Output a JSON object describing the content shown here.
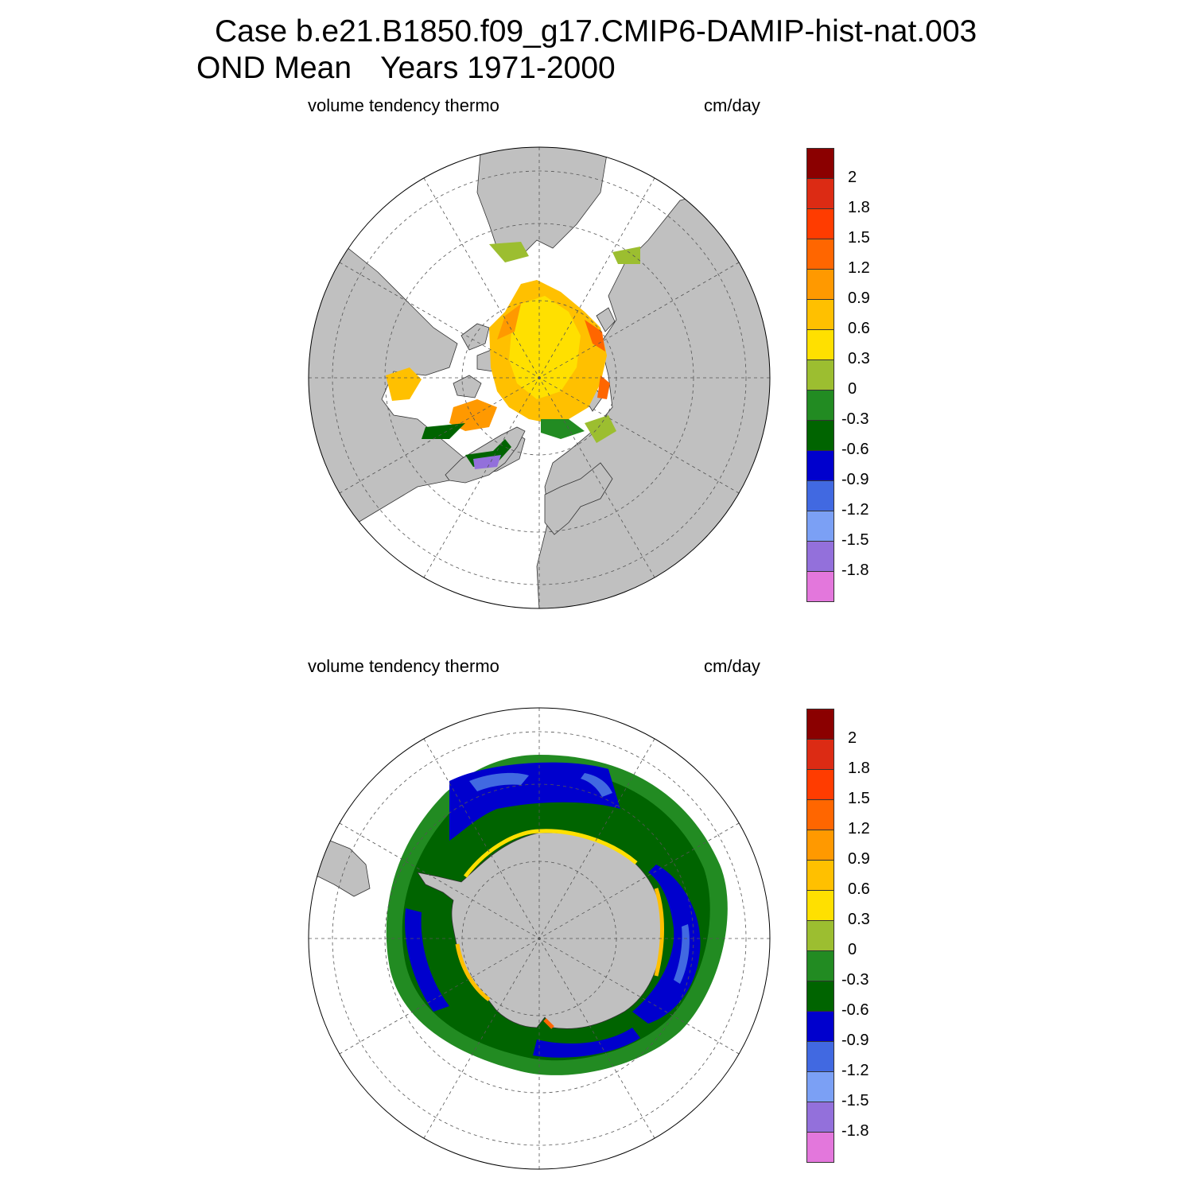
{
  "title_line1": "Case b.e21.B1850.f09_g17.CMIP6-DAMIP-hist-nat.003",
  "title_line2_part1": "OND Mean",
  "title_line2_part2": "Years 1971-2000",
  "panels": [
    {
      "variable_label": "volume tendency thermo",
      "units_label": "cm/day",
      "hemisphere": "north"
    },
    {
      "variable_label": "volume tendency thermo",
      "units_label": "cm/day",
      "hemisphere": "south"
    }
  ],
  "colorbar": {
    "colors": [
      "#8b0000",
      "#dc2b14",
      "#ff3c00",
      "#ff6600",
      "#ff9900",
      "#ffc000",
      "#ffe000",
      "#9cbe30",
      "#228b22",
      "#006400",
      "#0000cd",
      "#4169e1",
      "#7ba0f5",
      "#9370db",
      "#e377dc"
    ],
    "labels": [
      "2",
      "1.8",
      "1.5",
      "1.2",
      "0.9",
      "0.6",
      "0.3",
      "0",
      "-0.3",
      "-0.6",
      "-0.9",
      "-1.2",
      "-1.5",
      "-1.8"
    ]
  },
  "land_color": "#c0c0c0"
}
